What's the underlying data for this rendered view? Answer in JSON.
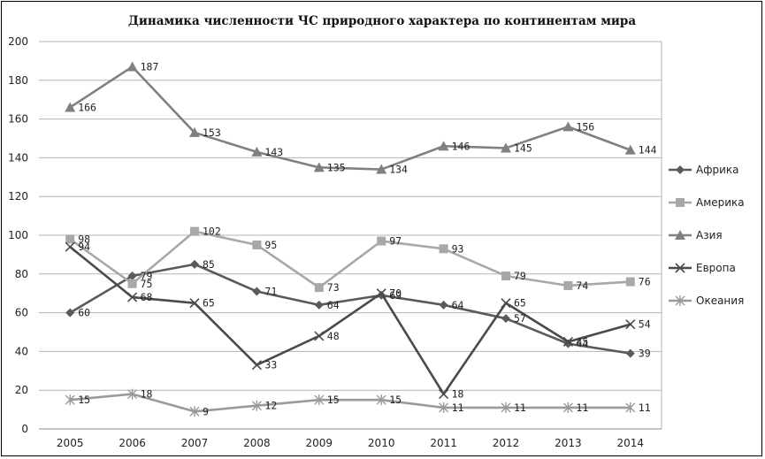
{
  "chart_data": {
    "type": "line",
    "title": "Динамика численности ЧС природного характера по континентам мира",
    "xlabel": "",
    "ylabel": "",
    "categories": [
      "2005",
      "2006",
      "2007",
      "2008",
      "2009",
      "2010",
      "2011",
      "2012",
      "2013",
      "2014"
    ],
    "ylim": [
      0,
      200
    ],
    "yticks": [
      0,
      20,
      40,
      60,
      80,
      100,
      120,
      140,
      160,
      180,
      200
    ],
    "grid": true,
    "legend_position": "right",
    "series": [
      {
        "name": "Африка",
        "marker": "diamond",
        "color": "#5a5a5a",
        "values": [
          60,
          79,
          85,
          71,
          64,
          69,
          64,
          57,
          44,
          39
        ]
      },
      {
        "name": "Америка",
        "marker": "square",
        "color": "#a8a8a8",
        "values": [
          98,
          75,
          102,
          95,
          73,
          97,
          93,
          79,
          74,
          76
        ]
      },
      {
        "name": "Азия",
        "marker": "triangle",
        "color": "#808080",
        "values": [
          166,
          187,
          153,
          143,
          135,
          134,
          146,
          145,
          156,
          144
        ]
      },
      {
        "name": "Европа",
        "marker": "x",
        "color": "#4a4a4a",
        "values": [
          94,
          68,
          65,
          33,
          48,
          70,
          18,
          65,
          45,
          54
        ]
      },
      {
        "name": "Океания",
        "marker": "star",
        "color": "#9a9a9a",
        "values": [
          15,
          18,
          9,
          12,
          15,
          15,
          11,
          11,
          11,
          11
        ]
      }
    ]
  }
}
